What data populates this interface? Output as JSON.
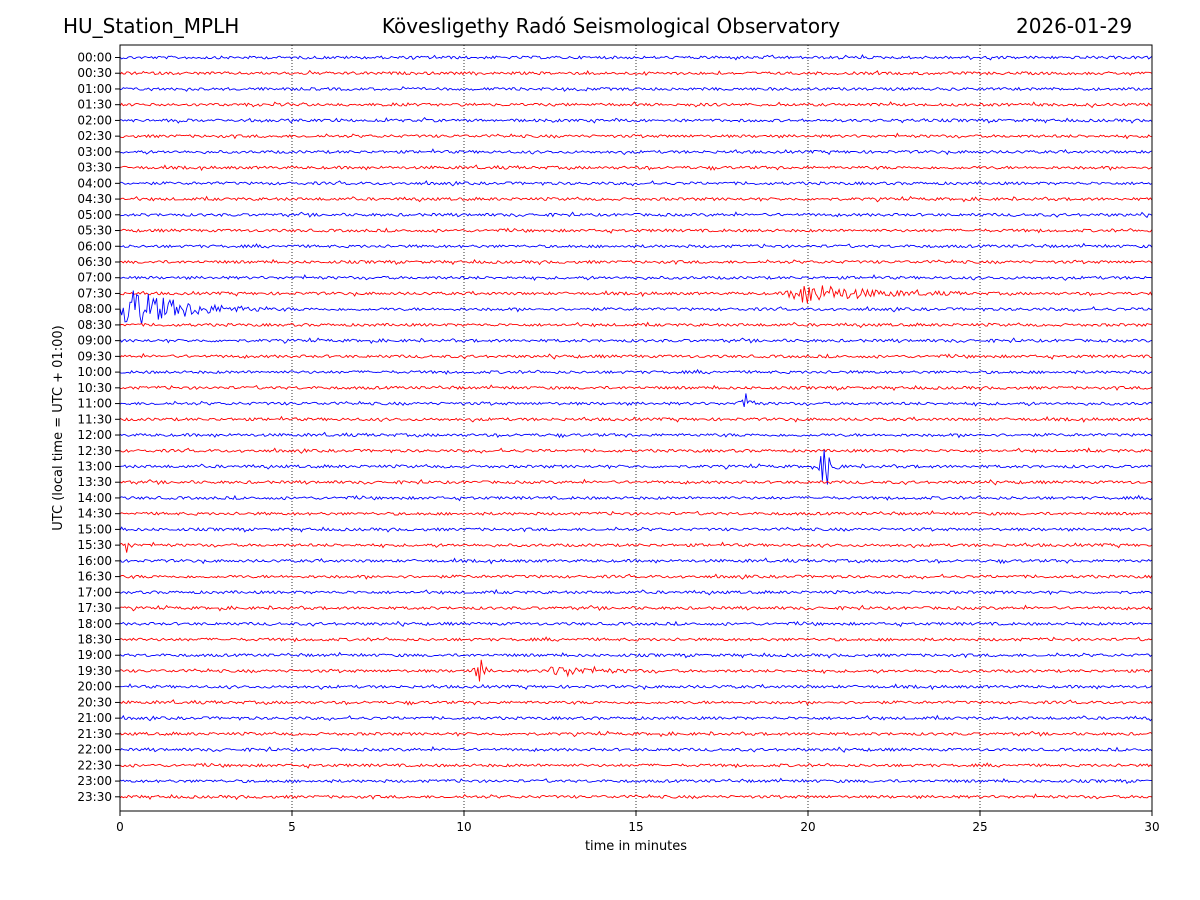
{
  "header": {
    "station": "HU_Station_MPLH",
    "observatory": "Kövesligethy Radó Seismological Observatory",
    "date": "2026-01-29"
  },
  "colors": {
    "trace_a": "#0000ff",
    "trace_b": "#ff0000",
    "grid": "#000000"
  },
  "chart_data": {
    "type": "line",
    "title": "Kövesligethy Radó Seismological Observatory",
    "xlabel": "time in minutes",
    "ylabel": "UTC (local time = UTC + 01:00)",
    "xlim": [
      0,
      30
    ],
    "xticks": [
      "0",
      "5",
      "10",
      "15",
      "20",
      "25",
      "30"
    ],
    "grid": "vertical dotted at x ticks",
    "rows": [
      "00:00",
      "00:30",
      "01:00",
      "01:30",
      "02:00",
      "02:30",
      "03:00",
      "03:30",
      "04:00",
      "04:30",
      "05:00",
      "05:30",
      "06:00",
      "06:30",
      "07:00",
      "07:30",
      "08:00",
      "08:30",
      "09:00",
      "09:30",
      "10:00",
      "10:30",
      "11:00",
      "11:30",
      "12:00",
      "12:30",
      "13:00",
      "13:30",
      "14:00",
      "14:30",
      "15:00",
      "15:30",
      "16:00",
      "16:30",
      "17:00",
      "17:30",
      "18:00",
      "18:30",
      "19:00",
      "19:30",
      "20:00",
      "20:30",
      "21:00",
      "21:30",
      "22:00",
      "22:30",
      "23:00",
      "23:30"
    ],
    "row_colors": "alternating blue (00:00, 01:00, ...) and red (00:30, 01:30, ...)",
    "events": [
      {
        "row": "07:30",
        "start_min": 19.3,
        "peak_min": 19.9,
        "end_min": 24.5,
        "amplitude": 0.75,
        "color": "red"
      },
      {
        "row": "08:00",
        "start_min": 0.0,
        "peak_min": 0.25,
        "end_min": 4.3,
        "amplitude": 1.6,
        "color": "blue"
      },
      {
        "row": "11:00",
        "start_min": 17.9,
        "peak_min": 18.3,
        "end_min": 18.6,
        "amplitude": 0.75,
        "color": "blue"
      },
      {
        "row": "13:00",
        "start_min": 20.3,
        "peak_min": 20.5,
        "end_min": 21.0,
        "amplitude": 1.8,
        "color": "blue"
      },
      {
        "row": "15:30",
        "start_min": 0.0,
        "peak_min": 0.2,
        "end_min": 0.5,
        "amplitude": 0.5,
        "color": "red"
      },
      {
        "row": "19:30",
        "start_min": 10.2,
        "peak_min": 10.5,
        "end_min": 10.8,
        "amplitude": 0.8,
        "color": "red"
      },
      {
        "row": "19:30",
        "start_min": 12.2,
        "peak_min": 12.8,
        "end_min": 15.6,
        "amplitude": 0.35,
        "color": "red"
      }
    ]
  }
}
